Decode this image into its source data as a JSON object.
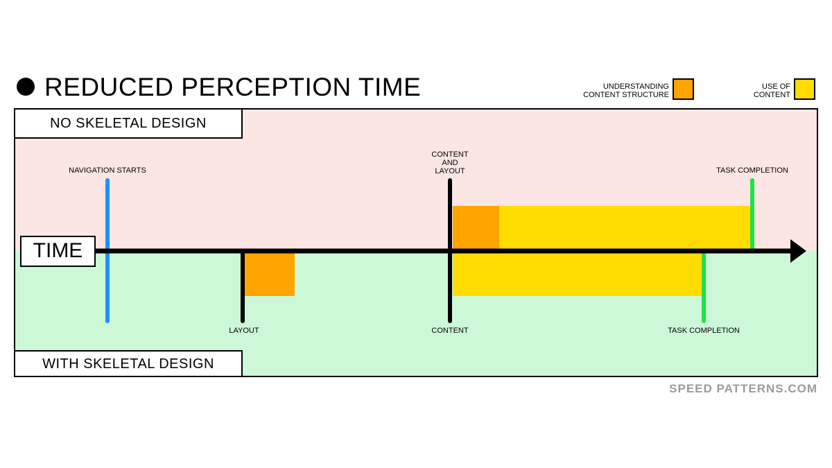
{
  "title": "REDUCED PERCEPTION TIME",
  "legend": {
    "understanding": {
      "label_line1": "UNDERSTANDING",
      "label_line2": "CONTENT STRUCTURE",
      "color": "#FFA500"
    },
    "use": {
      "label_line1": "USE OF",
      "label_line2": "CONTENT",
      "color": "#FFDD00"
    }
  },
  "sections": {
    "top": "NO SKELETAL DESIGN",
    "bottom": "WITH SKELETAL DESIGN"
  },
  "axis_label": "TIME",
  "top_events": {
    "navigation_starts": "NAVIGATION STARTS",
    "content_and_layout_line1": "CONTENT",
    "content_and_layout_line2": "AND",
    "content_and_layout_line3": "LAYOUT",
    "task_completion": "TASK COMPLETION"
  },
  "bottom_events": {
    "layout": "LAYOUT",
    "content": "CONTENT",
    "task_completion": "TASK COMPLETION"
  },
  "colors": {
    "top_background": "#FBE6E4",
    "bottom_background": "#CDF8D8",
    "navigation_line": "#1E90FF",
    "completion_line": "#22E04A",
    "axis": "#000000"
  },
  "footer": "SPEED PATTERNS.COM"
}
